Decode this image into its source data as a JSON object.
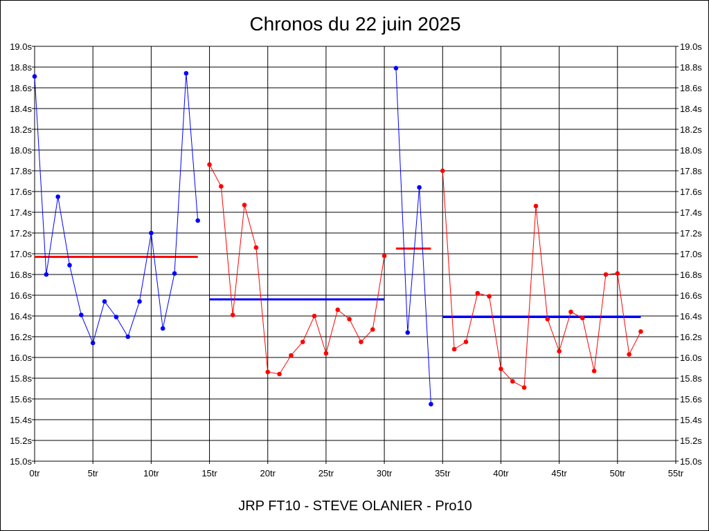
{
  "chart_data": {
    "type": "line",
    "title": "Chronos du 22 juin 2025",
    "caption": "JRP FT10 - STEVE OLANIER - Pro10",
    "xlabel": "",
    "ylabel": "",
    "xlim": [
      0,
      55
    ],
    "ylim": [
      15.0,
      19.0
    ],
    "x_ticks": [
      {
        "value": 0,
        "label": "0tr"
      },
      {
        "value": 5,
        "label": "5tr"
      },
      {
        "value": 10,
        "label": "10tr"
      },
      {
        "value": 15,
        "label": "15tr"
      },
      {
        "value": 20,
        "label": "20tr"
      },
      {
        "value": 25,
        "label": "25tr"
      },
      {
        "value": 30,
        "label": "30tr"
      },
      {
        "value": 35,
        "label": "35tr"
      },
      {
        "value": 40,
        "label": "40tr"
      },
      {
        "value": 45,
        "label": "45tr"
      },
      {
        "value": 50,
        "label": "50tr"
      },
      {
        "value": 55,
        "label": "55tr"
      }
    ],
    "y_ticks": [
      {
        "value": 19.0,
        "label": "19.0s"
      },
      {
        "value": 18.8,
        "label": "18.8s"
      },
      {
        "value": 18.6,
        "label": "18.6s"
      },
      {
        "value": 18.4,
        "label": "18.4s"
      },
      {
        "value": 18.2,
        "label": "18.2s"
      },
      {
        "value": 18.0,
        "label": "18.0s"
      },
      {
        "value": 17.8,
        "label": "17.8s"
      },
      {
        "value": 17.6,
        "label": "17.6s"
      },
      {
        "value": 17.4,
        "label": "17.4s"
      },
      {
        "value": 17.2,
        "label": "17.2s"
      },
      {
        "value": 17.0,
        "label": "17.0s"
      },
      {
        "value": 16.8,
        "label": "16.8s"
      },
      {
        "value": 16.6,
        "label": "16.6s"
      },
      {
        "value": 16.4,
        "label": "16.4s"
      },
      {
        "value": 16.2,
        "label": "16.2s"
      },
      {
        "value": 16.0,
        "label": "16.0s"
      },
      {
        "value": 15.8,
        "label": "15.8s"
      },
      {
        "value": 15.6,
        "label": "15.6s"
      },
      {
        "value": 15.4,
        "label": "15.4s"
      },
      {
        "value": 15.2,
        "label": "15.2s"
      },
      {
        "value": 15.0,
        "label": "15.0s"
      }
    ],
    "grid": true,
    "series": [
      {
        "color": "#0000ff",
        "x": [
          0,
          1,
          2,
          3,
          4,
          5,
          6,
          7,
          8,
          9,
          10,
          11,
          12,
          13,
          14
        ],
        "y": [
          18.71,
          16.8,
          17.55,
          16.89,
          16.41,
          16.14,
          16.54,
          16.39,
          16.2,
          16.54,
          17.2,
          16.28,
          16.81,
          18.74,
          17.32
        ]
      },
      {
        "color": "#ff0000",
        "x": [
          15,
          16,
          17,
          18,
          19,
          20,
          21,
          22,
          23,
          24,
          25,
          26,
          27,
          28,
          29,
          30
        ],
        "y": [
          17.86,
          17.65,
          16.41,
          17.47,
          17.06,
          15.86,
          15.84,
          16.02,
          16.15,
          16.4,
          16.04,
          16.46,
          16.37,
          16.15,
          16.27,
          16.98
        ]
      },
      {
        "color": "#0000ff",
        "x": [
          31,
          32,
          33,
          34
        ],
        "y": [
          18.79,
          16.24,
          17.64,
          15.55
        ]
      },
      {
        "color": "#ff0000",
        "x": [
          35,
          36,
          37,
          38,
          39,
          40,
          41,
          42,
          43,
          44,
          45,
          46,
          47,
          48,
          49,
          50,
          51,
          52
        ],
        "y": [
          17.8,
          16.08,
          16.15,
          16.62,
          16.59,
          15.89,
          15.77,
          15.71,
          17.46,
          16.37,
          16.06,
          16.44,
          16.38,
          15.87,
          16.8,
          16.81,
          16.03,
          16.25
        ]
      }
    ],
    "averages": [
      {
        "color": "#ff0000",
        "x": [
          0,
          14
        ],
        "y": 16.97
      },
      {
        "color": "#0000ff",
        "x": [
          15,
          30
        ],
        "y": 16.56
      },
      {
        "color": "#ff0000",
        "x": [
          31,
          34
        ],
        "y": 17.05
      },
      {
        "color": "#0000ff",
        "x": [
          35,
          52
        ],
        "y": 16.39
      }
    ]
  }
}
